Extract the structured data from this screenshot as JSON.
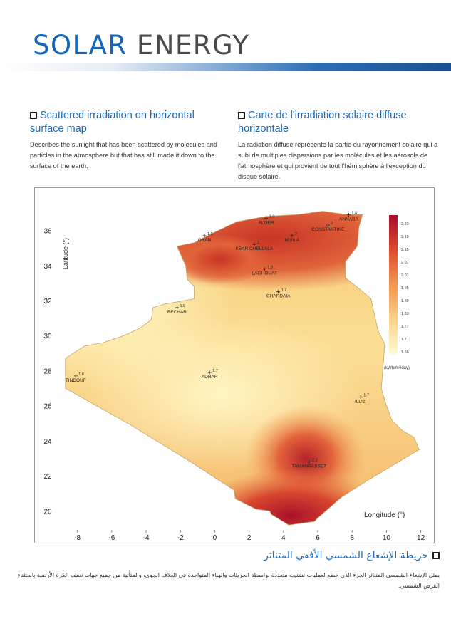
{
  "header": {
    "title_word1": "SOLAR",
    "title_word2": "ENERGY"
  },
  "section_en": {
    "heading": "Scattered irradiation on horizontal surface map",
    "body": "Describes the sunlight that has been scattered by molecules and particles in the atmosphere but that has still made it down to the surface of the earth."
  },
  "section_fr": {
    "heading": "Carte de l'irradiation solaire diffuse horizontale",
    "body": "La radiation diffuse représente la partie du rayonnement solaire qui a subi de multiples dispersions par les molécules et les aérosols de l'atmosphère et qui provient de tout l'hémisphère à l'exception du disque solaire."
  },
  "section_ar": {
    "heading": "خريطة الإشعاع الشمسي الأفقي المتناثر",
    "body": "يمثل الإشعاع الشمسي المتناثر الجزء الذي خضع لعمليات تشتيت متعددة بواسطة الجزيئات والهباء المتواجدة في الغلاف الجوي، والمتأتية من جميع جهات نصف الكرة الأرضية باستثناء القرص الشمسي."
  },
  "map": {
    "ylabel": "Latitude (°)",
    "xlabel": "Longitude (°)",
    "xticks": [
      "-8",
      "-6",
      "-4",
      "-2",
      "0",
      "2",
      "4",
      "6",
      "8",
      "10",
      "12"
    ],
    "yticks": [
      "36",
      "34",
      "32",
      "30",
      "28",
      "26",
      "24",
      "22",
      "20"
    ],
    "colorbar_ticks": [
      "2.23",
      "2.19",
      "2.15",
      "2.07",
      "2.01",
      "1.95",
      "1.89",
      "1.83",
      "1.77",
      "1.71",
      "1.66"
    ],
    "colorbar_unit": "(kWh/m²/day)",
    "colors": {
      "high": "#b2182b",
      "mid": "#f4a259",
      "low": "#fdf3b4"
    },
    "cities": [
      {
        "name": "ALGER",
        "value": "1.9",
        "lon": 3.0,
        "lat": 36.7
      },
      {
        "name": "ANNABA",
        "value": "1.8",
        "lon": 7.8,
        "lat": 36.9
      },
      {
        "name": "CONSTANTINE",
        "value": "2",
        "lon": 6.6,
        "lat": 36.3
      },
      {
        "name": "ORAN",
        "value": "1.9",
        "lon": -0.6,
        "lat": 35.7
      },
      {
        "name": "M'SILA",
        "value": "2",
        "lon": 4.5,
        "lat": 35.7
      },
      {
        "name": "KSAR CHELLALA",
        "value": "2",
        "lon": 2.3,
        "lat": 35.2
      },
      {
        "name": "LAGHOUAT",
        "value": "1.9",
        "lon": 2.9,
        "lat": 33.8
      },
      {
        "name": "GHARDAIA",
        "value": "1.7",
        "lon": 3.7,
        "lat": 32.5
      },
      {
        "name": "BECHAR",
        "value": "1.9",
        "lon": -2.2,
        "lat": 31.6
      },
      {
        "name": "TINDOUF",
        "value": "1.6",
        "lon": -8.1,
        "lat": 27.7
      },
      {
        "name": "ADRAR",
        "value": "1.7",
        "lon": -0.3,
        "lat": 27.9
      },
      {
        "name": "ILLIZI",
        "value": "1.7",
        "lon": 8.5,
        "lat": 26.5
      },
      {
        "name": "TAMANRASSET",
        "value": "2.3",
        "lon": 5.5,
        "lat": 22.8
      }
    ]
  }
}
